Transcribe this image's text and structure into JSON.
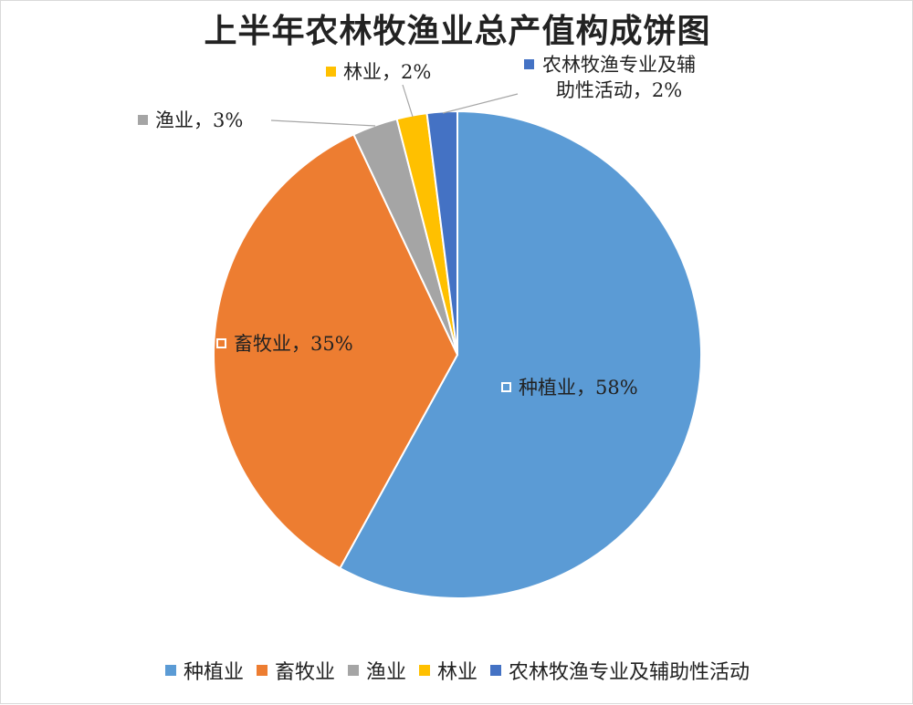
{
  "chart_data": {
    "type": "pie",
    "title": "上半年农林牧渔业总产值构成饼图",
    "categories": [
      "种植业",
      "畜牧业",
      "渔业",
      "林业",
      "农林牧渔专业及辅助性活动"
    ],
    "values": [
      58,
      35,
      3,
      2,
      2
    ],
    "value_labels": [
      "种植业，58%",
      "畜牧业，35%",
      "渔业，3%",
      "林业，2%",
      "农林牧渔专业及辅助性活动，2%"
    ],
    "colors": [
      "#5b9bd5",
      "#ed7d31",
      "#a5a5a5",
      "#ffc000",
      "#4472c4"
    ],
    "legend": "bottom"
  }
}
